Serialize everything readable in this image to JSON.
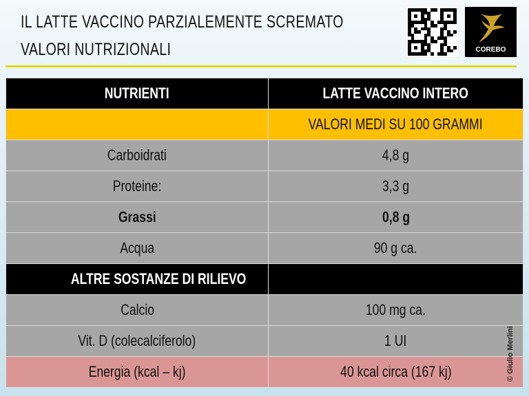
{
  "header": {
    "title_line1": "IL LATTE VACCINO PARZIALEMENTE SCREMATO",
    "title_line2": "VALORI NUTRIZIONALI",
    "logo_text": "COREBO",
    "accent": "#e6d81e"
  },
  "table": {
    "col_headers": [
      "NUTRIENTI",
      "LATTE VACCINO INTERO"
    ],
    "subheader": "VALORI MEDI SU 100 GRAMMI",
    "rows": [
      {
        "name": "Carboidrati",
        "value": "4,8  g"
      },
      {
        "name": "Proteine:",
        "value": "3,3  g"
      },
      {
        "name": "Grassi",
        "value": "0,8  g"
      },
      {
        "name": "Acqua",
        "value": "90  g  ca."
      }
    ],
    "section": "ALTRE SOSTANZE DI RILIEVO",
    "rows2": [
      {
        "name": "Calcio",
        "value": "100  mg  ca."
      },
      {
        "name": "Vit. D  (colecalciferolo)",
        "value": "1  UI"
      }
    ],
    "energy": {
      "name": "Energia  (kcal  –  kj)",
      "value": "40  kcal  circa  (167  kj)"
    }
  },
  "copyright": "© Giulio Merlini"
}
